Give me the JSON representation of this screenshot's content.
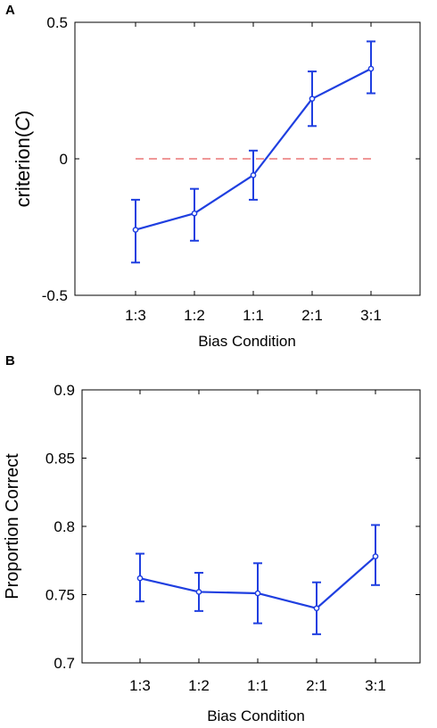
{
  "chart_data": [
    {
      "panel": "A",
      "type": "line",
      "categories": [
        "1:3",
        "1:2",
        "1:1",
        "2:1",
        "3:1"
      ],
      "values": [
        -0.26,
        -0.2,
        -0.06,
        0.22,
        0.33
      ],
      "error_low": [
        -0.38,
        -0.3,
        -0.15,
        0.12,
        0.24
      ],
      "error_high": [
        -0.15,
        -0.11,
        0.03,
        0.32,
        0.43
      ],
      "reference_line": 0,
      "title": "",
      "xlabel": "Bias Condition",
      "ylabel_prefix": "criterion(",
      "ylabel_symbol": "C",
      "ylabel_suffix": ")",
      "ylim": [
        -0.5,
        0.5
      ],
      "yticks": [
        -0.5,
        0,
        0.5
      ],
      "ytick_labels": [
        "-0.5",
        "0",
        "0.5"
      ],
      "grid": false,
      "line_color": "#1f3fe0",
      "reference_color": "#e85a5a"
    },
    {
      "panel": "B",
      "type": "line",
      "categories": [
        "1:3",
        "1:2",
        "1:1",
        "2:1",
        "3:1"
      ],
      "values": [
        0.762,
        0.752,
        0.751,
        0.74,
        0.778
      ],
      "error_low": [
        0.745,
        0.738,
        0.729,
        0.721,
        0.757
      ],
      "error_high": [
        0.78,
        0.766,
        0.773,
        0.759,
        0.801
      ],
      "title": "",
      "xlabel": "Bias Condition",
      "ylabel": "Proportion Correct",
      "ylim": [
        0.7,
        0.9
      ],
      "yticks": [
        0.7,
        0.75,
        0.8,
        0.85,
        0.9
      ],
      "ytick_labels": [
        "0.7",
        "0.75",
        "0.8",
        "0.85",
        "0.9"
      ],
      "grid": false,
      "line_color": "#1f3fe0"
    }
  ]
}
